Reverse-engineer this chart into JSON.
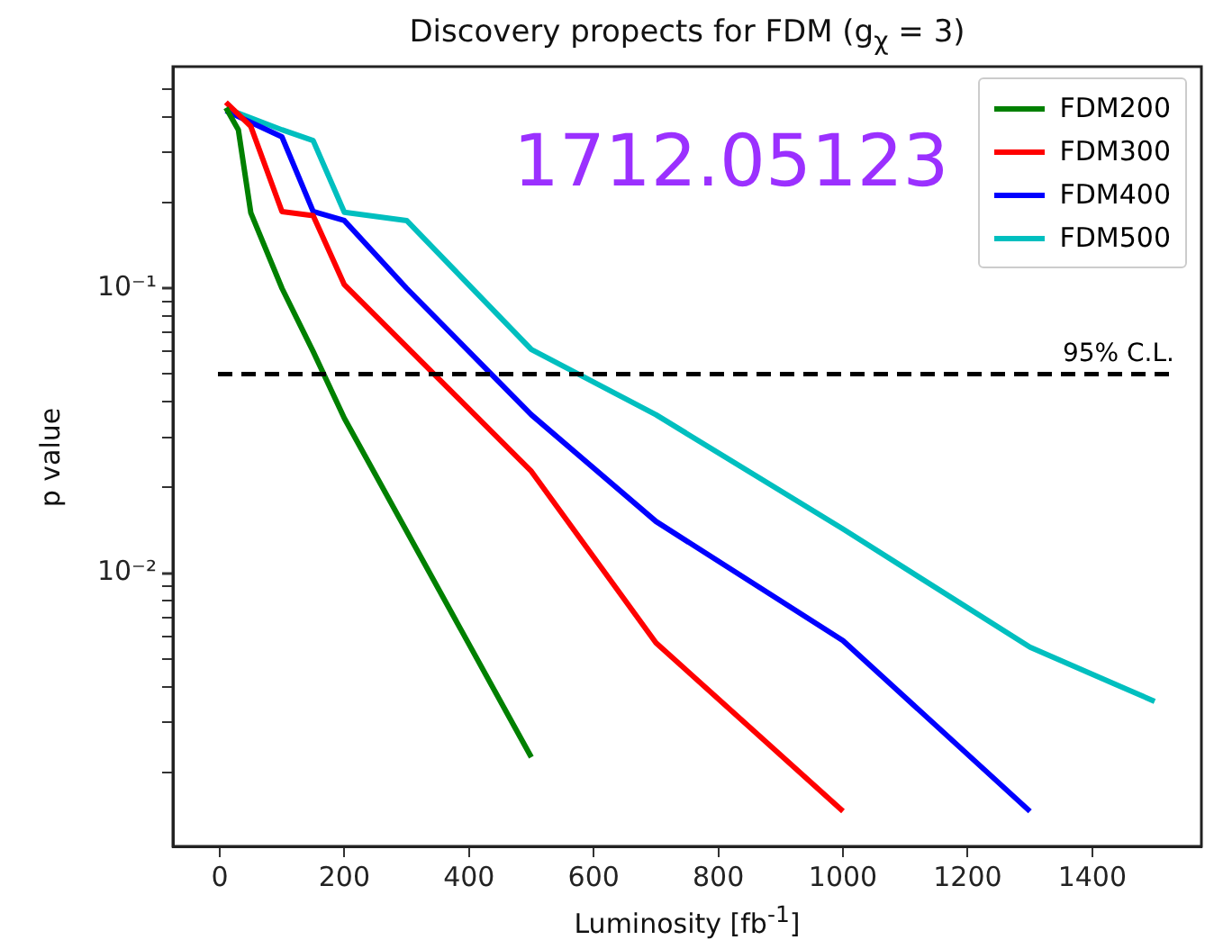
{
  "chart_data": {
    "type": "line",
    "title": "Discovery propects for FDM (g$_{χ}$ = 3)",
    "xlabel": "Luminosity [fb$^{-1}$]",
    "ylabel": "p value",
    "log": "y",
    "grid": false,
    "legend": "top right",
    "marker": "none",
    "line_style": "solid",
    "xlim": [
      -75,
      1575
    ],
    "xticks": [
      0,
      200,
      400,
      600,
      800,
      1000,
      1200,
      1400
    ],
    "ylim": [
      0.0011,
      0.6
    ],
    "yticks": [
      {
        "value": 0.002,
        "label": null
      },
      {
        "value": 0.003,
        "label": null
      },
      {
        "value": 0.004,
        "label": null
      },
      {
        "value": 0.005,
        "label": null
      },
      {
        "value": 0.006,
        "label": null
      },
      {
        "value": 0.007,
        "label": null
      },
      {
        "value": 0.008,
        "label": null
      },
      {
        "value": 0.009,
        "label": null
      },
      {
        "value": 0.01,
        "label": "10⁻²"
      },
      {
        "value": 0.02,
        "label": null
      },
      {
        "value": 0.03,
        "label": null
      },
      {
        "value": 0.04,
        "label": null
      },
      {
        "value": 0.05,
        "label": null
      },
      {
        "value": 0.06,
        "label": null
      },
      {
        "value": 0.07,
        "label": null
      },
      {
        "value": 0.08,
        "label": null
      },
      {
        "value": 0.09,
        "label": null
      },
      {
        "value": 0.1,
        "label": "10⁻¹"
      },
      {
        "value": 0.2,
        "label": null
      },
      {
        "value": 0.3,
        "label": null
      },
      {
        "value": 0.4,
        "label": null
      },
      {
        "value": 0.5,
        "label": null
      }
    ],
    "series": [
      {
        "name": "FDM200",
        "color": "#008000",
        "x": [
          10,
          30,
          50,
          100,
          150,
          200,
          500
        ],
        "values": [
          0.43,
          0.36,
          0.184,
          0.1,
          0.06,
          0.035,
          0.00226
        ]
      },
      {
        "name": "FDM300",
        "color": "#ff0000",
        "x": [
          10,
          50,
          100,
          150,
          200,
          500,
          700,
          1000
        ],
        "values": [
          0.45,
          0.37,
          0.186,
          0.18,
          0.103,
          0.0228,
          0.0057,
          0.00146
        ]
      },
      {
        "name": "FDM400",
        "color": "#0000ff",
        "x": [
          10,
          100,
          150,
          200,
          300,
          500,
          700,
          1000,
          1300
        ],
        "values": [
          0.42,
          0.34,
          0.186,
          0.173,
          0.1,
          0.036,
          0.0152,
          0.0058,
          0.00146
        ]
      },
      {
        "name": "FDM500",
        "color": "#00bfbf",
        "x": [
          20,
          100,
          150,
          200,
          300,
          500,
          700,
          1000,
          1300,
          1500
        ],
        "values": [
          0.42,
          0.36,
          0.33,
          0.185,
          0.173,
          0.061,
          0.036,
          0.0143,
          0.0055,
          0.00355
        ]
      }
    ],
    "ref_lines": [
      {
        "axis": "y",
        "value": 0.05,
        "label": "95% C.L.",
        "color": "#000000",
        "line_style": "dashed"
      }
    ],
    "annotations": [
      "1712.05123"
    ]
  }
}
